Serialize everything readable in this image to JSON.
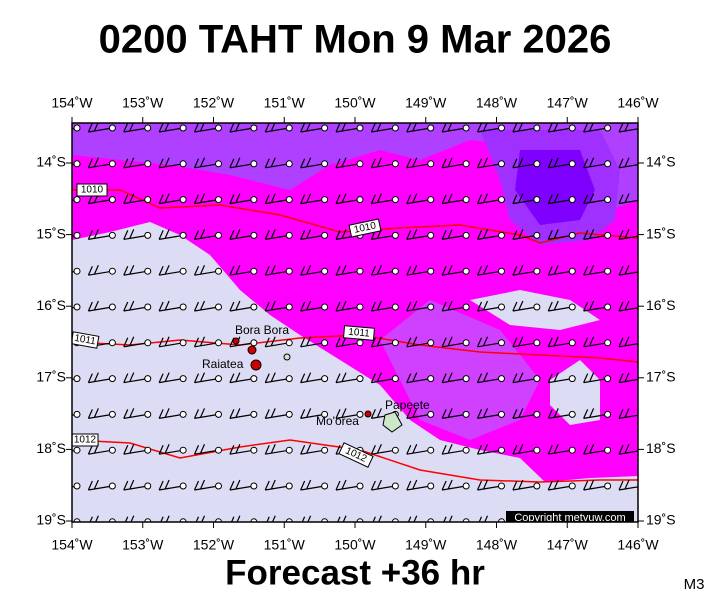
{
  "title": "0200 TAHT Mon 9 Mar 2026",
  "footer": "Forecast +36 hr",
  "corner": "M3",
  "copyright": "Copyright metvuw.com",
  "lon_labels": [
    "154˚W",
    "153˚W",
    "152˚W",
    "151˚W",
    "150˚W",
    "149˚W",
    "148˚W",
    "147˚W",
    "146˚W"
  ],
  "lat_labels": [
    "14˚S",
    "15˚S",
    "16˚S",
    "17˚S",
    "18˚S",
    "19˚S"
  ],
  "places": [
    "Bora Bora",
    "Raiatea",
    "Mo'orea",
    "Papeete"
  ],
  "isobars": [
    "1010",
    "1010",
    "1011",
    "1011",
    "1012",
    "1012"
  ]
}
